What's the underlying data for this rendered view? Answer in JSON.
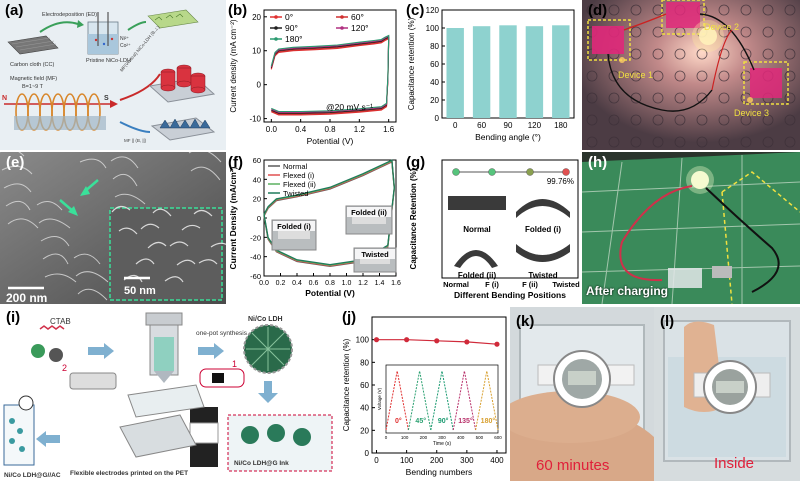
{
  "panels": {
    "a": {
      "label": "(a)",
      "texts": {
        "carbon_cloth": "Carbon cloth (CC)",
        "electrodeposition": "Electrodeposition (ED)",
        "pristine": "Pristine NiCo-LDH",
        "ni": "Ni²⁺",
        "co": "Co²⁺",
        "magnetic_field": "Magnetic field (MF)",
        "b_field": "B=1~9 T",
        "mf_vertical": "MF(Vertical) NiCo-LDH (B,⊥)",
        "mf_parallel": "MF || (B, ||)",
        "n": "N",
        "s": "S"
      }
    },
    "b": {
      "label": "(b)",
      "annotation": "@20 mV s⁻¹",
      "legend": [
        "0°",
        "60°",
        "90°",
        "120°",
        "180°"
      ]
    },
    "c": {
      "label": "(c)"
    },
    "d": {
      "label": "(d)",
      "devices": [
        "Device 1",
        "Device 2",
        "Device 3"
      ]
    },
    "e": {
      "label": "(e)",
      "scale_main": "200 nm",
      "scale_inset": "50 nm"
    },
    "f": {
      "label": "(f)",
      "legend": [
        "Normal",
        "Flexed (i)",
        "Flexed (ii)",
        "Twisted"
      ],
      "insets": [
        "Folded (i)",
        "Folded (ii)",
        "Twisted"
      ]
    },
    "g": {
      "label": "(g)",
      "top_value": "99.76%",
      "states": [
        "Normal",
        "Folded (i)",
        "Folded (ii)",
        "Twisted"
      ]
    },
    "h": {
      "label": "(h)",
      "caption": "After charging"
    },
    "i": {
      "label": "(i)",
      "ctab": "CTAB",
      "one_pot": "one-pot synthesis",
      "ldh": "Ni/Co LDH",
      "ink": "Ni/Co LDH@G Ink",
      "printed": "Flexible electrodes printed on the PET",
      "device": "Ni/Co LDH@G//AC",
      "step1": "1",
      "step2": "2"
    },
    "j": {
      "label": "(j)",
      "inset_angles": [
        "0°",
        "45°",
        "90°",
        "135°",
        "180°"
      ],
      "inset_xlabel": "Time (s)",
      "inset_ylabel": "Voltage (V)",
      "inset_xticks": [
        "0",
        "100",
        "200",
        "300",
        "400",
        "500",
        "600"
      ]
    },
    "k": {
      "label": "(k)",
      "caption": "60 minutes"
    },
    "l": {
      "label": "(l)",
      "caption": "Inside"
    }
  },
  "chart_data": [
    {
      "panel": "b",
      "type": "line",
      "xlabel": "Potential (V)",
      "ylabel": "Current density (mA cm⁻²)",
      "xlim": [
        -0.1,
        1.7
      ],
      "ylim": [
        -11,
        22
      ],
      "xticks": [
        0.0,
        0.4,
        0.8,
        1.2,
        1.6
      ],
      "yticks": [
        -10,
        0,
        10,
        20
      ],
      "series": [
        {
          "name": "0°",
          "color": "#e03030"
        },
        {
          "name": "60°",
          "color": "#d03030"
        },
        {
          "name": "90°",
          "color": "#202020"
        },
        {
          "name": "120°",
          "color": "#b03080"
        },
        {
          "name": "180°",
          "color": "#2a9a70"
        }
      ],
      "curve": {
        "upper": [
          [
            0.0,
            5
          ],
          [
            0.05,
            9
          ],
          [
            0.1,
            10
          ],
          [
            0.3,
            10.5
          ],
          [
            0.6,
            10.8
          ],
          [
            0.9,
            11.2
          ],
          [
            1.2,
            12
          ],
          [
            1.4,
            12.5
          ],
          [
            1.5,
            12.8
          ],
          [
            1.55,
            13.5
          ],
          [
            1.6,
            14
          ]
        ],
        "lower": [
          [
            1.6,
            14
          ],
          [
            1.59,
            2
          ],
          [
            1.57,
            -6
          ],
          [
            1.5,
            -7
          ],
          [
            1.2,
            -7.6
          ],
          [
            0.8,
            -8.2
          ],
          [
            0.4,
            -8.4
          ],
          [
            0.1,
            -8.4
          ],
          [
            0.0,
            -7.5
          ]
        ]
      }
    },
    {
      "panel": "c",
      "type": "bar",
      "categories": [
        "0",
        "60",
        "90",
        "120",
        "180"
      ],
      "values": [
        100,
        102,
        103,
        102,
        103
      ],
      "xlabel": "Bending angle (°)",
      "ylabel": "Capacitance retention (%)",
      "ylim": [
        0,
        120
      ],
      "yticks": [
        0,
        20,
        40,
        60,
        80,
        100,
        120
      ],
      "color": "#8ed2cf"
    },
    {
      "panel": "f",
      "type": "line",
      "xlabel": "Potential (V)",
      "ylabel": "Current Density (mA/cm²)",
      "xlim": [
        0.0,
        1.6
      ],
      "ylim": [
        -60,
        60
      ],
      "xticks": [
        0.0,
        0.2,
        0.4,
        0.6,
        0.8,
        1.0,
        1.2,
        1.4,
        1.6
      ],
      "yticks": [
        -60,
        -40,
        -20,
        0,
        20,
        40,
        60
      ],
      "series": [
        {
          "name": "Normal",
          "color": "#5a5a5a"
        },
        {
          "name": "Flexed (i)",
          "color": "#e05050"
        },
        {
          "name": "Flexed (ii)",
          "color": "#5ab060"
        },
        {
          "name": "Twisted",
          "color": "#1f7a5a"
        }
      ],
      "curve": [
        [
          0.0,
          2
        ],
        [
          0.05,
          10
        ],
        [
          0.15,
          18
        ],
        [
          0.4,
          22
        ],
        [
          0.8,
          30
        ],
        [
          1.2,
          44
        ],
        [
          1.55,
          58
        ],
        [
          1.58,
          30
        ],
        [
          1.5,
          -30
        ],
        [
          1.2,
          -45
        ],
        [
          0.8,
          -50
        ],
        [
          0.4,
          -45
        ],
        [
          0.15,
          -35
        ],
        [
          0.05,
          -22
        ],
        [
          0.0,
          2
        ]
      ]
    },
    {
      "panel": "g",
      "type": "bar",
      "categories": [
        "Normal",
        "F (i)",
        "F (ii)",
        "Twisted"
      ],
      "xlabel": "Different Bending Positions",
      "ylabel": "Capacitance Retention (%)",
      "dot_colors": [
        "#56c47c",
        "#56c47c",
        "#8aa050",
        "#e05050"
      ]
    },
    {
      "panel": "j",
      "type": "line",
      "xlabel": "Bending numbers",
      "ylabel": "Capacitance retention (%)",
      "xlim": [
        -15,
        430
      ],
      "ylim": [
        0,
        120
      ],
      "xticks": [
        0,
        100,
        200,
        300,
        400
      ],
      "yticks": [
        0,
        20,
        40,
        60,
        80,
        100
      ],
      "x": [
        0,
        100,
        200,
        300,
        400
      ],
      "y": [
        100,
        100,
        99,
        98,
        96
      ],
      "color": "#d02a3a"
    }
  ]
}
